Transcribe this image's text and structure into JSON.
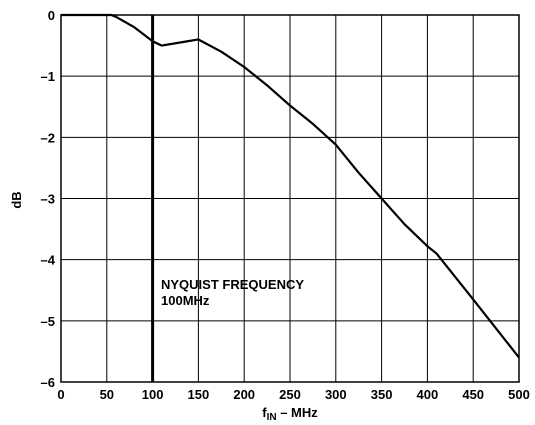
{
  "chart_data": {
    "type": "line",
    "xlabel_main": "f",
    "xlabel_sub": "IN",
    "xlabel_rest": " – MHz",
    "ylabel": "dB",
    "xlim": [
      0,
      500
    ],
    "ylim": [
      -6,
      0
    ],
    "x_ticks": [
      0,
      50,
      100,
      150,
      200,
      250,
      300,
      350,
      400,
      450,
      500
    ],
    "x_tick_labels": [
      "0",
      "50",
      "100",
      "150",
      "200",
      "250",
      "300",
      "350",
      "400",
      "450",
      "500"
    ],
    "y_ticks": [
      0,
      -1,
      -2,
      -3,
      -4,
      -5,
      -6
    ],
    "y_tick_labels": [
      "0",
      "–1",
      "–2",
      "–3",
      "–4",
      "–5",
      "–6"
    ],
    "grid": true,
    "series": [
      {
        "x": [
          0,
          20,
          40,
          55,
          60,
          80,
          100,
          110,
          130,
          150,
          175,
          200,
          225,
          250,
          275,
          300,
          325,
          350,
          375,
          400,
          410,
          450,
          500
        ],
        "y": [
          0,
          0,
          0,
          0,
          -0.03,
          -0.2,
          -0.43,
          -0.5,
          -0.45,
          -0.4,
          -0.6,
          -0.85,
          -1.15,
          -1.48,
          -1.78,
          -2.12,
          -2.58,
          -3.0,
          -3.42,
          -3.78,
          -3.9,
          -4.65,
          -5.6
        ]
      }
    ],
    "vertical_marker": {
      "x": 100
    },
    "annotation_lines": [
      "NYQUIST FREQUENCY",
      "100MHz"
    ]
  }
}
